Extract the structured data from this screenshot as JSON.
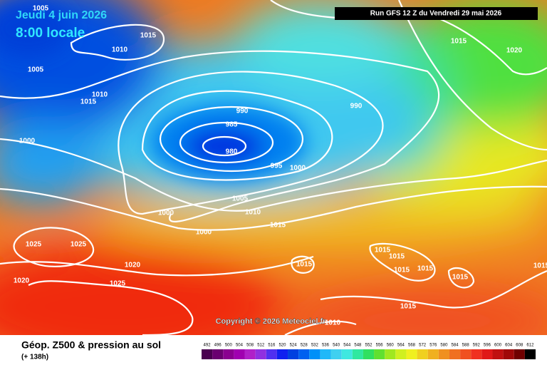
{
  "header": {
    "date": "Jeudi 4 juin 2026",
    "time": "8:00 locale",
    "run": "Run GFS 12 Z du Vendredi 29 mai 2026"
  },
  "copyright": "Copyright © 2026 Meteociel.fr",
  "footer": {
    "title": "Géop. Z500 & pression au sol",
    "subtitle": "(+ 138h)"
  },
  "isobar_labels": [
    1005,
    1015,
    1010,
    1005,
    1010,
    1015,
    990,
    985,
    980,
    995,
    1000,
    990,
    1015,
    1020,
    1000,
    1005,
    1010,
    1015,
    1000,
    1000,
    1025,
    1025,
    1020,
    1020,
    1025,
    1015,
    1015,
    1015,
    1015,
    1015,
    1015,
    1015,
    1010,
    1015
  ],
  "legend": {
    "values": [
      492,
      496,
      500,
      504,
      508,
      512,
      516,
      520,
      524,
      528,
      532,
      536,
      540,
      544,
      548,
      552,
      556,
      560,
      564,
      568,
      572,
      576,
      580,
      584,
      588,
      592,
      596,
      600,
      604,
      608,
      612
    ],
    "colors": [
      "#4a0050",
      "#6a0070",
      "#8a0090",
      "#a000b0",
      "#b020c8",
      "#9030e0",
      "#5030f0",
      "#1020f0",
      "#0040e0",
      "#0060f0",
      "#0090f8",
      "#20b8f8",
      "#40d0f0",
      "#40e8e0",
      "#30e8a0",
      "#30e060",
      "#60e030",
      "#a0e820",
      "#d0f020",
      "#f0f020",
      "#f0d020",
      "#f0b020",
      "#f09020",
      "#f07020",
      "#f05020",
      "#f03020",
      "#e01818",
      "#c01010",
      "#a00808",
      "#700000",
      "#000000"
    ]
  }
}
